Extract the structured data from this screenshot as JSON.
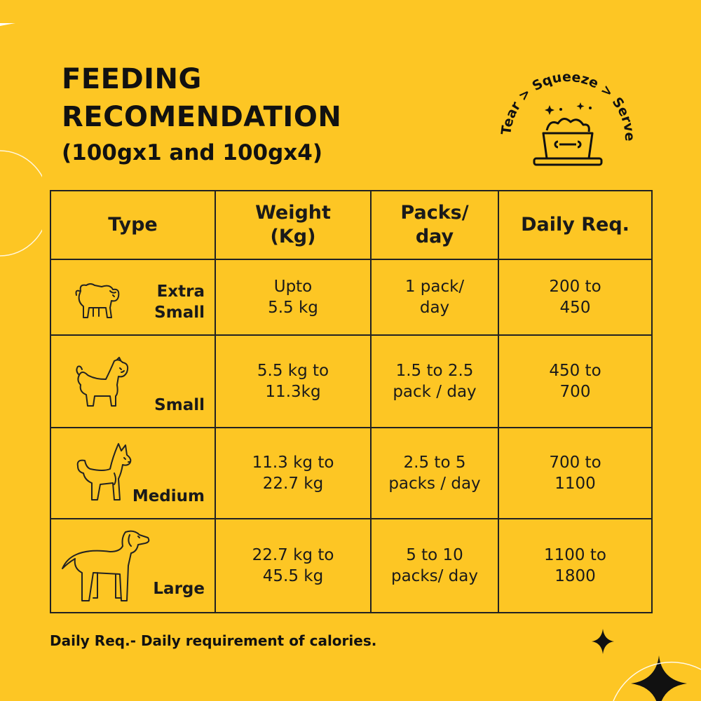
{
  "header": {
    "title_line1": "FEEDING",
    "title_line2": "RECOMENDATION",
    "subtitle": "(100gx1 and 100gx4)"
  },
  "badge": {
    "word1": "Tear",
    "word2": "Squeeze",
    "word3": "Serve",
    "sep": ">",
    "icon": "food-bowl-icon"
  },
  "table": {
    "headers": {
      "type": "Type",
      "weight_line1": "Weight",
      "weight_line2": "(Kg)",
      "packs_line1": "Packs/",
      "packs_line2": "day",
      "daily": "Daily Req."
    },
    "rows": [
      {
        "icon": "pug-icon",
        "type_line1": "Extra",
        "type_line2": "Small",
        "weight_line1": "Upto",
        "weight_line2": "5.5 kg",
        "packs_line1": "1 pack/",
        "packs_line2": "day",
        "daily_line1": "200 to",
        "daily_line2": "450"
      },
      {
        "icon": "shih-tzu-icon",
        "type_line1": "Small",
        "weight_line1": "5.5 kg to",
        "weight_line2": "11.3kg",
        "packs_line1": "1.5 to 2.5",
        "packs_line2": "pack / day",
        "daily_line1": "450 to",
        "daily_line2": "700"
      },
      {
        "icon": "spitz-icon",
        "type_line1": "Medium",
        "weight_line1": "11.3 kg to",
        "weight_line2": "22.7 kg",
        "packs_line1": "2.5 to 5",
        "packs_line2": "packs / day",
        "daily_line1": "700 to",
        "daily_line2": "1100"
      },
      {
        "icon": "labrador-icon",
        "type_line1": "Large",
        "weight_line1": "22.7 kg to",
        "weight_line2": "45.5 kg",
        "packs_line1": "5 to 10",
        "packs_line2": "packs/ day",
        "daily_line1": "1100 to",
        "daily_line2": "1800"
      }
    ]
  },
  "footnote": "Daily Req.- Daily requirement of calories.",
  "colors": {
    "background": "#FDC624",
    "ink": "#111111"
  }
}
